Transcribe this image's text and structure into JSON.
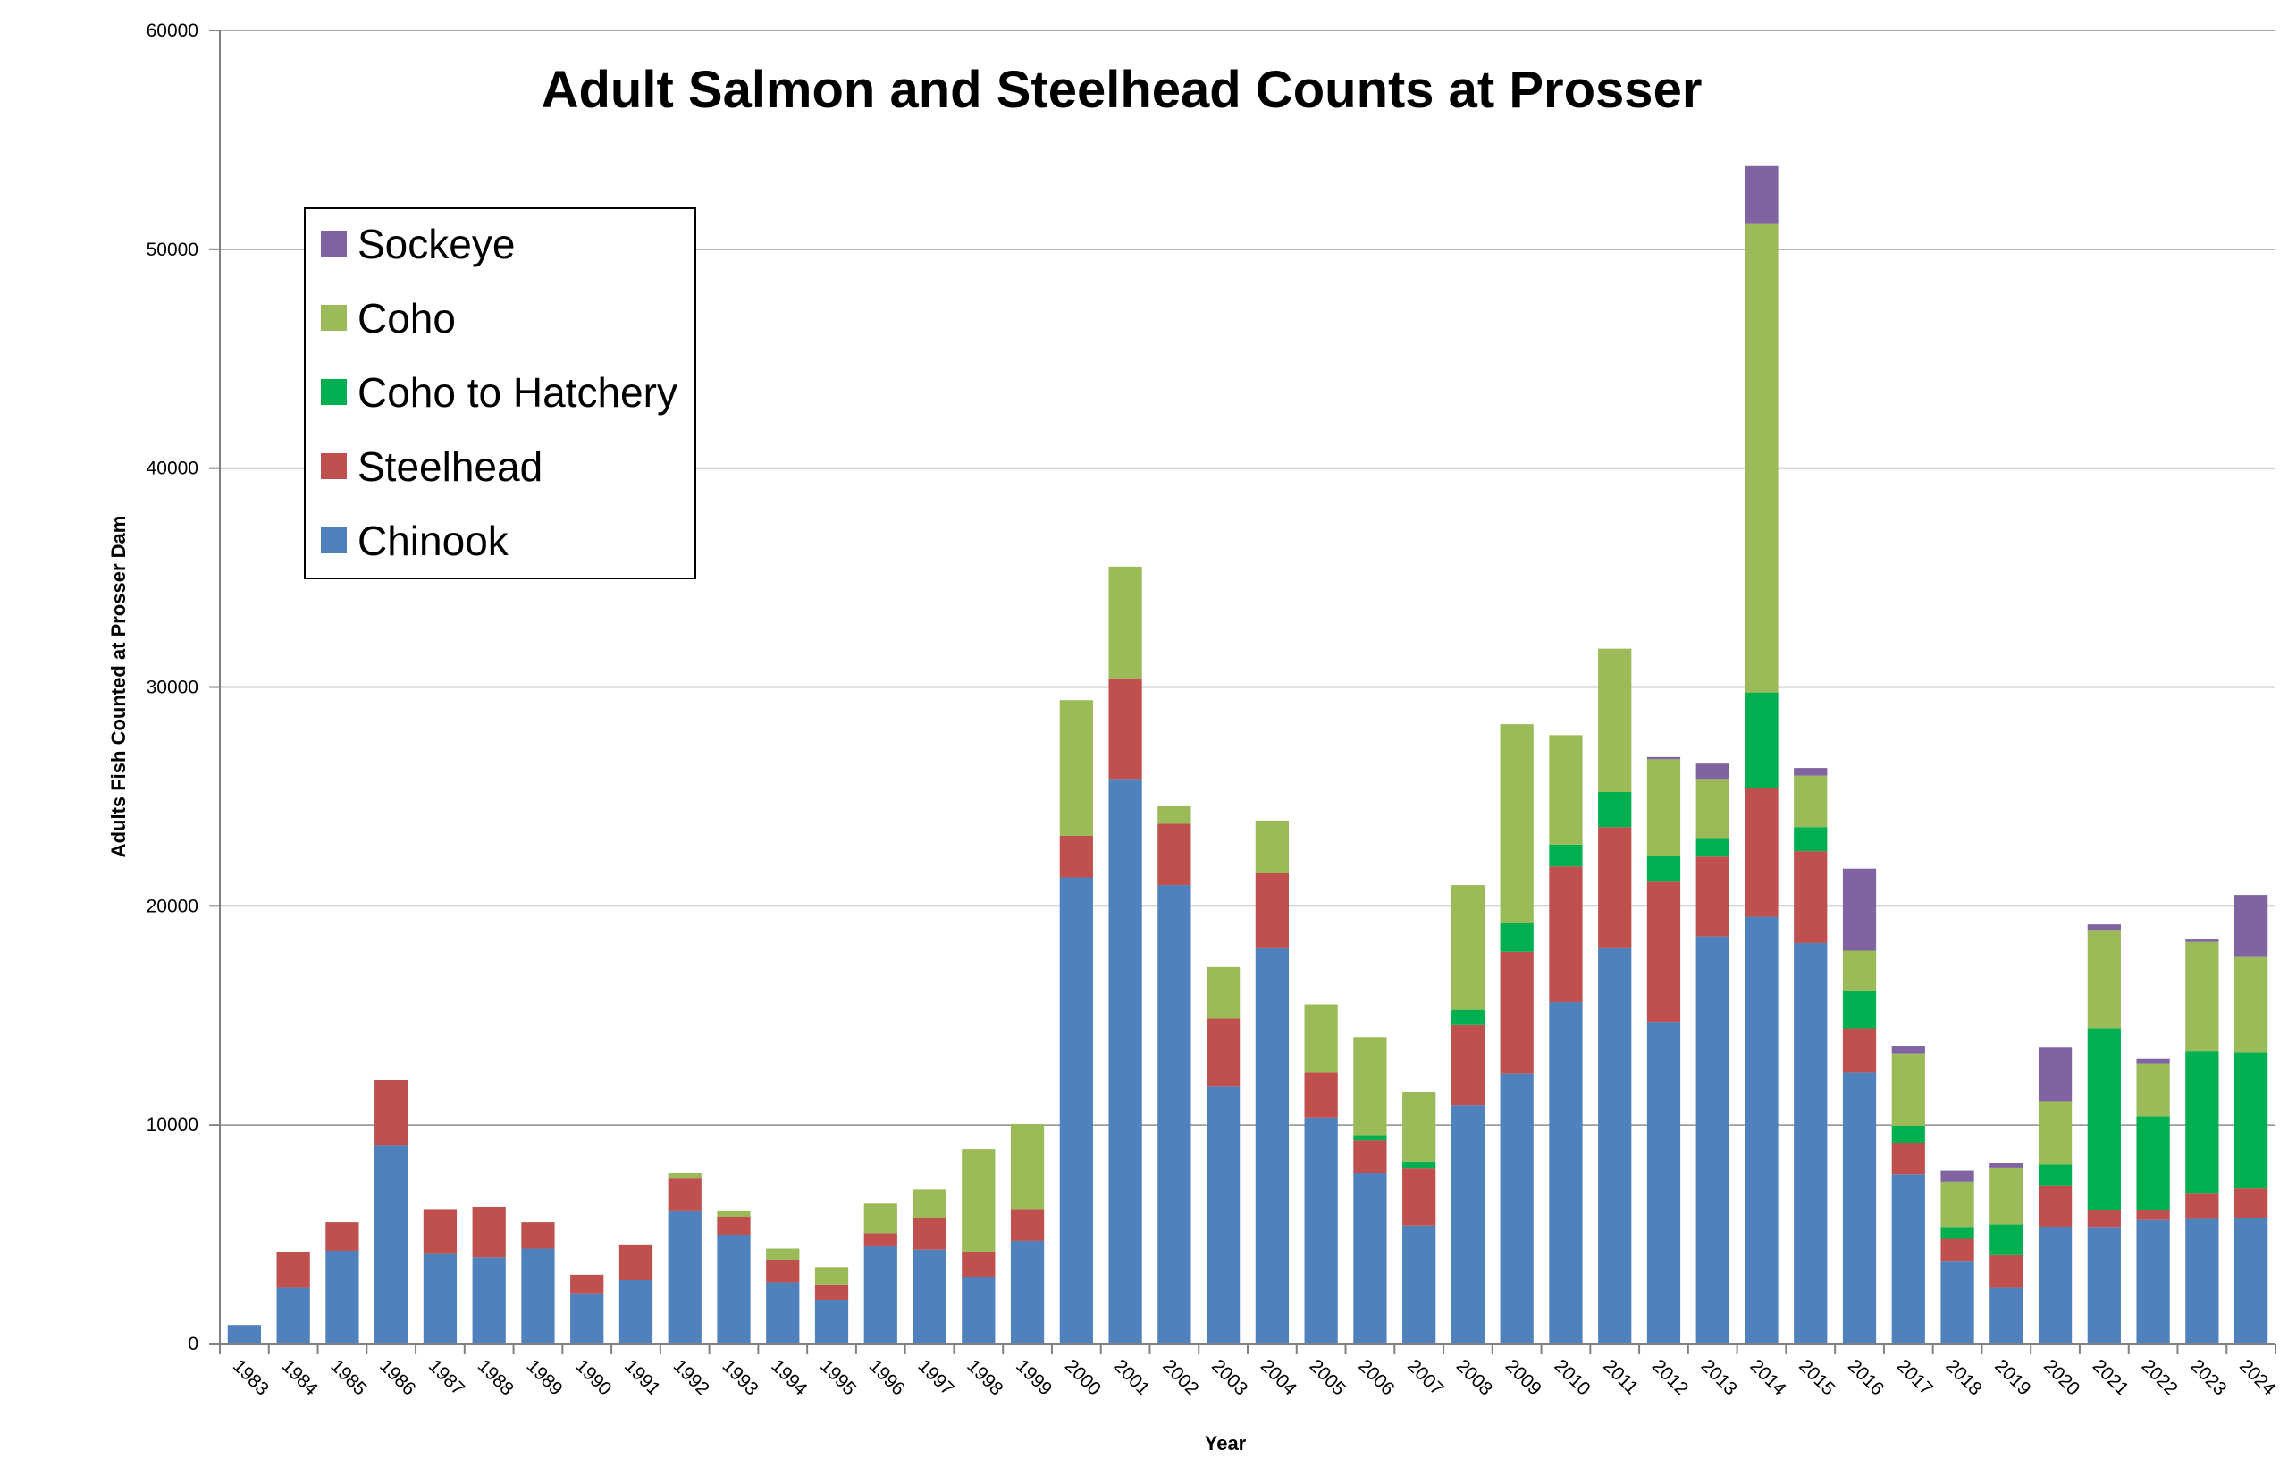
{
  "chart_data": {
    "type": "bar",
    "stacked": true,
    "title": "Adult Salmon and Steelhead Counts at Prosser",
    "xlabel": "Year",
    "ylabel": "Adults Fish Counted at Prosser Dam",
    "ylim": [
      0,
      60000
    ],
    "yticks": [
      0,
      10000,
      20000,
      30000,
      40000,
      50000,
      60000
    ],
    "yticklabels": [
      "0",
      "10000",
      "20000",
      "30000",
      "40000",
      "50000",
      "60000"
    ],
    "grid": true,
    "legend_position": "upper-left",
    "categories": [
      "1983",
      "1984",
      "1985",
      "1986",
      "1987",
      "1988",
      "1989",
      "1990",
      "1991",
      "1992",
      "1993",
      "1994",
      "1995",
      "1996",
      "1997",
      "1998",
      "1999",
      "2000",
      "2001",
      "2002",
      "2003",
      "2004",
      "2005",
      "2006",
      "2007",
      "2008",
      "2009",
      "2010",
      "2011",
      "2012",
      "2013",
      "2014",
      "2015",
      "2016",
      "2017",
      "2018",
      "2019",
      "2020",
      "2021",
      "2022",
      "2023",
      "2024"
    ],
    "series": [
      {
        "name": "Chinook",
        "color": "#4F81BD",
        "values": [
          850,
          2550,
          4250,
          9050,
          4100,
          3950,
          4350,
          2300,
          2900,
          6050,
          4950,
          2800,
          2000,
          4450,
          4300,
          3050,
          4700,
          21300,
          25800,
          20950,
          11750,
          18100,
          10300,
          7800,
          5400,
          10900,
          12350,
          15600,
          18100,
          14700,
          18600,
          19500,
          18300,
          12400,
          7750,
          3750,
          2550,
          5350,
          5300,
          5650,
          5700,
          5750
        ]
      },
      {
        "name": "Steelhead",
        "color": "#C0504D",
        "values": [
          0,
          1650,
          1300,
          3000,
          2050,
          2300,
          1200,
          850,
          1600,
          1500,
          850,
          1000,
          700,
          600,
          1450,
          1150,
          1450,
          1900,
          4600,
          2800,
          3100,
          3400,
          2100,
          1500,
          2600,
          3650,
          5550,
          6200,
          5500,
          6400,
          3650,
          5900,
          4200,
          2000,
          1400,
          1050,
          1500,
          1850,
          800,
          450,
          1150,
          1350
        ]
      },
      {
        "name": "Coho to Hatchery",
        "color": "#00B050",
        "values": [
          0,
          0,
          0,
          0,
          0,
          0,
          0,
          0,
          0,
          0,
          0,
          0,
          0,
          0,
          0,
          0,
          0,
          0,
          0,
          0,
          0,
          0,
          0,
          200,
          300,
          700,
          1300,
          1000,
          1600,
          1200,
          850,
          4350,
          1100,
          1700,
          800,
          500,
          1400,
          1000,
          8300,
          4300,
          6500,
          6200
        ]
      },
      {
        "name": "Coho",
        "color": "#9BBB59",
        "values": [
          0,
          0,
          0,
          0,
          0,
          0,
          0,
          0,
          0,
          250,
          250,
          550,
          800,
          1350,
          1300,
          4700,
          3900,
          6200,
          5100,
          800,
          2350,
          2400,
          3100,
          4500,
          3200,
          5700,
          9100,
          5000,
          6550,
          4400,
          2700,
          21400,
          2350,
          1850,
          3300,
          2100,
          2600,
          2850,
          4500,
          2400,
          5000,
          4400
        ]
      },
      {
        "name": "Sockeye",
        "color": "#8064A2",
        "values": [
          0,
          0,
          0,
          0,
          0,
          0,
          0,
          0,
          0,
          0,
          0,
          0,
          0,
          0,
          0,
          0,
          0,
          0,
          0,
          0,
          0,
          0,
          0,
          0,
          0,
          0,
          0,
          0,
          0,
          100,
          700,
          2650,
          350,
          3750,
          350,
          500,
          200,
          2500,
          250,
          200,
          150,
          2800
        ]
      }
    ],
    "legend_order": [
      "Sockeye",
      "Coho",
      "Coho to Hatchery",
      "Steelhead",
      "Chinook"
    ]
  }
}
